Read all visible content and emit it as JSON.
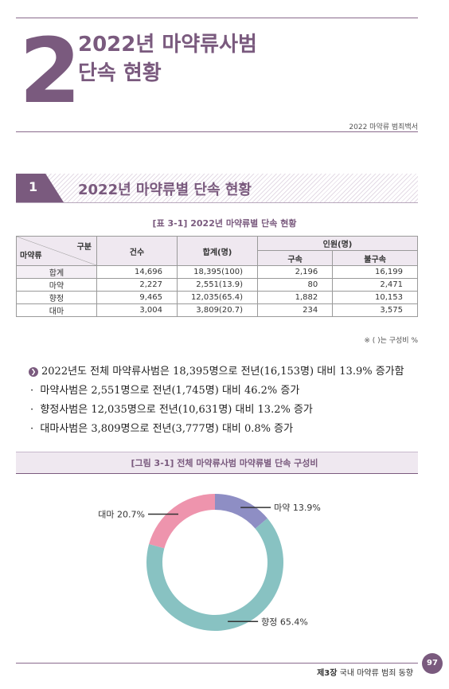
{
  "chapter": {
    "number": "2",
    "title_line1": "2022년 마약류사범",
    "title_line2": "단속 현황",
    "brand": "2022 마약류 범죄백서"
  },
  "section": {
    "number": "1",
    "title": "2022년 마약류별 단속 현황"
  },
  "table": {
    "caption": "[표 3-1] 2022년 마약류별 단속 현황",
    "corner_top": "구분",
    "corner_bottom": "마약류",
    "col_cases": "건수",
    "col_total": "합계(명)",
    "col_persons": "인원(명)",
    "col_arrest": "구속",
    "col_nonarrest": "불구속",
    "rows": [
      {
        "type": "합계",
        "cases": "14,696",
        "total": "18,395(100)",
        "arrest": "2,196",
        "nonarrest": "16,199"
      },
      {
        "type": "마약",
        "cases": "2,227",
        "total": "2,551(13.9)",
        "arrest": "80",
        "nonarrest": "2,471"
      },
      {
        "type": "향정",
        "cases": "9,465",
        "total": "12,035(65.4)",
        "arrest": "1,882",
        "nonarrest": "10,153"
      },
      {
        "type": "대마",
        "cases": "3,004",
        "total": "3,809(20.7)",
        "arrest": "234",
        "nonarrest": "3,575"
      }
    ],
    "note": "※ ( )는 구성비 %"
  },
  "summary": {
    "main": "2022년도 전체 마약류사범은 18,395명으로 전년(16,153명) 대비 13.9% 증가함",
    "items": [
      "마약사범은 2,551명으로 전년(1,745명) 대비 46.2% 증가",
      "향정사범은 12,035명으로 전년(10,631명) 대비 13.2% 증가",
      "대마사범은 3,809명으로 전년(3,777명) 대비 0.8% 증가"
    ]
  },
  "figure": {
    "caption": "[그림 3-1] 전체 마약류사범 마약류별 단속 구성비"
  },
  "chart_data": {
    "type": "pie",
    "title": "[그림 3-1] 전체 마약류사범 마약류별 단속 구성비",
    "categories": [
      "마약",
      "향정",
      "대마"
    ],
    "values": [
      13.9,
      65.4,
      20.7
    ],
    "labels": [
      "마약 13.9%",
      "향정 65.4%",
      "대마 20.7%"
    ],
    "colors": [
      "#8e8ec4",
      "#88c2c2",
      "#ee94ad"
    ]
  },
  "footer": {
    "chapter_label": "제3장",
    "chapter_title": "국내 마약류 범죄 동향",
    "page": "97"
  }
}
